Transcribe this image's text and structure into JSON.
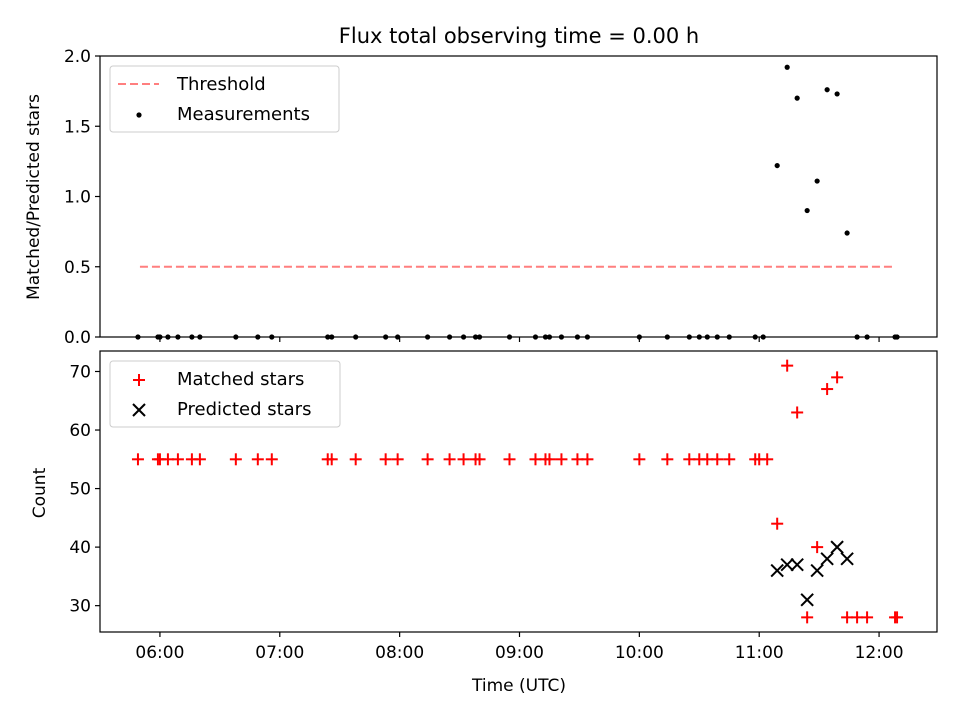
{
  "chart_data": [
    {
      "type": "scatter",
      "title": "Flux total observing time = 0.00 h",
      "xlabel": "",
      "ylabel": "Matched/Predicted stars",
      "ylim": [
        0,
        2.0
      ],
      "yticks": [
        "0.0",
        "0.5",
        "1.0",
        "1.5",
        "2.0"
      ],
      "xlim": [
        "05:30",
        "12:29"
      ],
      "legend": "top-left",
      "threshold": {
        "name": "Threshold",
        "y": 0.5,
        "x_start": "05:50",
        "x_end": "12:08",
        "color": "#ff7f7f"
      },
      "series": [
        {
          "name": "Measurements",
          "color": "#000000",
          "marker": "dot",
          "points": [
            [
              "05:49",
              0
            ],
            [
              "05:59",
              0
            ],
            [
              "06:00",
              0
            ],
            [
              "06:04",
              0
            ],
            [
              "06:09",
              0
            ],
            [
              "06:16",
              0
            ],
            [
              "06:20",
              0
            ],
            [
              "06:38",
              0
            ],
            [
              "06:49",
              0
            ],
            [
              "06:56",
              0
            ],
            [
              "07:24",
              0
            ],
            [
              "07:26",
              0
            ],
            [
              "07:38",
              0
            ],
            [
              "07:53",
              0
            ],
            [
              "07:59",
              0
            ],
            [
              "08:14",
              0
            ],
            [
              "08:25",
              0
            ],
            [
              "08:32",
              0
            ],
            [
              "08:38",
              0
            ],
            [
              "08:40",
              0
            ],
            [
              "08:55",
              0
            ],
            [
              "09:08",
              0
            ],
            [
              "09:13",
              0
            ],
            [
              "09:15",
              0
            ],
            [
              "09:21",
              0
            ],
            [
              "09:29",
              0
            ],
            [
              "09:34",
              0
            ],
            [
              "10:00",
              0
            ],
            [
              "10:14",
              0
            ],
            [
              "10:25",
              0
            ],
            [
              "10:30",
              0
            ],
            [
              "10:34",
              0
            ],
            [
              "10:39",
              0
            ],
            [
              "10:45",
              0
            ],
            [
              "10:58",
              0
            ],
            [
              "11:02",
              0
            ],
            [
              "11:09",
              1.22
            ],
            [
              "11:14",
              1.92
            ],
            [
              "11:19",
              1.7
            ],
            [
              "11:24",
              0.9
            ],
            [
              "11:29",
              1.11
            ],
            [
              "11:34",
              1.76
            ],
            [
              "11:39",
              1.73
            ],
            [
              "11:44",
              0.74
            ],
            [
              "11:49",
              0
            ],
            [
              "11:54",
              0
            ],
            [
              "12:08",
              0
            ],
            [
              "12:09",
              0
            ]
          ]
        }
      ]
    },
    {
      "type": "scatter",
      "title": "",
      "xlabel": "Time (UTC)",
      "ylabel": "Count",
      "ylim": [
        25.5,
        73.5
      ],
      "yticks": [
        "30",
        "40",
        "50",
        "60",
        "70"
      ],
      "xlim": [
        "05:30",
        "12:29"
      ],
      "xticks": [
        "06:00",
        "07:00",
        "08:00",
        "09:00",
        "10:00",
        "11:00",
        "12:00"
      ],
      "legend": "top-left",
      "series": [
        {
          "name": "Matched stars",
          "color": "#ff0000",
          "marker": "plus",
          "points": [
            [
              "05:49",
              55
            ],
            [
              "05:59",
              55
            ],
            [
              "06:00",
              55
            ],
            [
              "06:04",
              55
            ],
            [
              "06:09",
              55
            ],
            [
              "06:16",
              55
            ],
            [
              "06:20",
              55
            ],
            [
              "06:38",
              55
            ],
            [
              "06:49",
              55
            ],
            [
              "06:56",
              55
            ],
            [
              "07:24",
              55
            ],
            [
              "07:26",
              55
            ],
            [
              "07:38",
              55
            ],
            [
              "07:53",
              55
            ],
            [
              "07:59",
              55
            ],
            [
              "08:14",
              55
            ],
            [
              "08:25",
              55
            ],
            [
              "08:32",
              55
            ],
            [
              "08:38",
              55
            ],
            [
              "08:40",
              55
            ],
            [
              "08:55",
              55
            ],
            [
              "09:08",
              55
            ],
            [
              "09:13",
              55
            ],
            [
              "09:15",
              55
            ],
            [
              "09:21",
              55
            ],
            [
              "09:29",
              55
            ],
            [
              "09:34",
              55
            ],
            [
              "10:00",
              55
            ],
            [
              "10:14",
              55
            ],
            [
              "10:25",
              55
            ],
            [
              "10:30",
              55
            ],
            [
              "10:34",
              55
            ],
            [
              "10:39",
              55
            ],
            [
              "10:45",
              55
            ],
            [
              "10:58",
              55
            ],
            [
              "11:00",
              55
            ],
            [
              "11:04",
              55
            ],
            [
              "11:09",
              44
            ],
            [
              "11:14",
              71
            ],
            [
              "11:19",
              63
            ],
            [
              "11:24",
              28
            ],
            [
              "11:29",
              40
            ],
            [
              "11:34",
              67
            ],
            [
              "11:39",
              69
            ],
            [
              "11:44",
              28
            ],
            [
              "11:49",
              28
            ],
            [
              "11:54",
              28
            ],
            [
              "12:08",
              28
            ],
            [
              "12:09",
              28
            ]
          ]
        },
        {
          "name": "Predicted stars",
          "color": "#000000",
          "marker": "x",
          "points": [
            [
              "11:09",
              36
            ],
            [
              "11:14",
              37
            ],
            [
              "11:19",
              37
            ],
            [
              "11:24",
              31
            ],
            [
              "11:29",
              36
            ],
            [
              "11:34",
              38
            ],
            [
              "11:39",
              40
            ],
            [
              "11:44",
              38
            ]
          ]
        }
      ]
    }
  ]
}
